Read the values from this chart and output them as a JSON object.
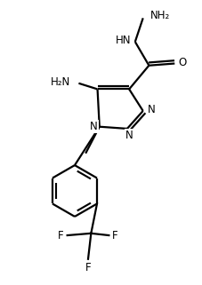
{
  "background_color": "#ffffff",
  "line_color": "#000000",
  "line_width": 1.6,
  "font_size": 8.5,
  "figsize": [
    2.28,
    3.21
  ],
  "dpi": 100,
  "xlim": [
    0,
    10
  ],
  "ylim": [
    0,
    14
  ]
}
